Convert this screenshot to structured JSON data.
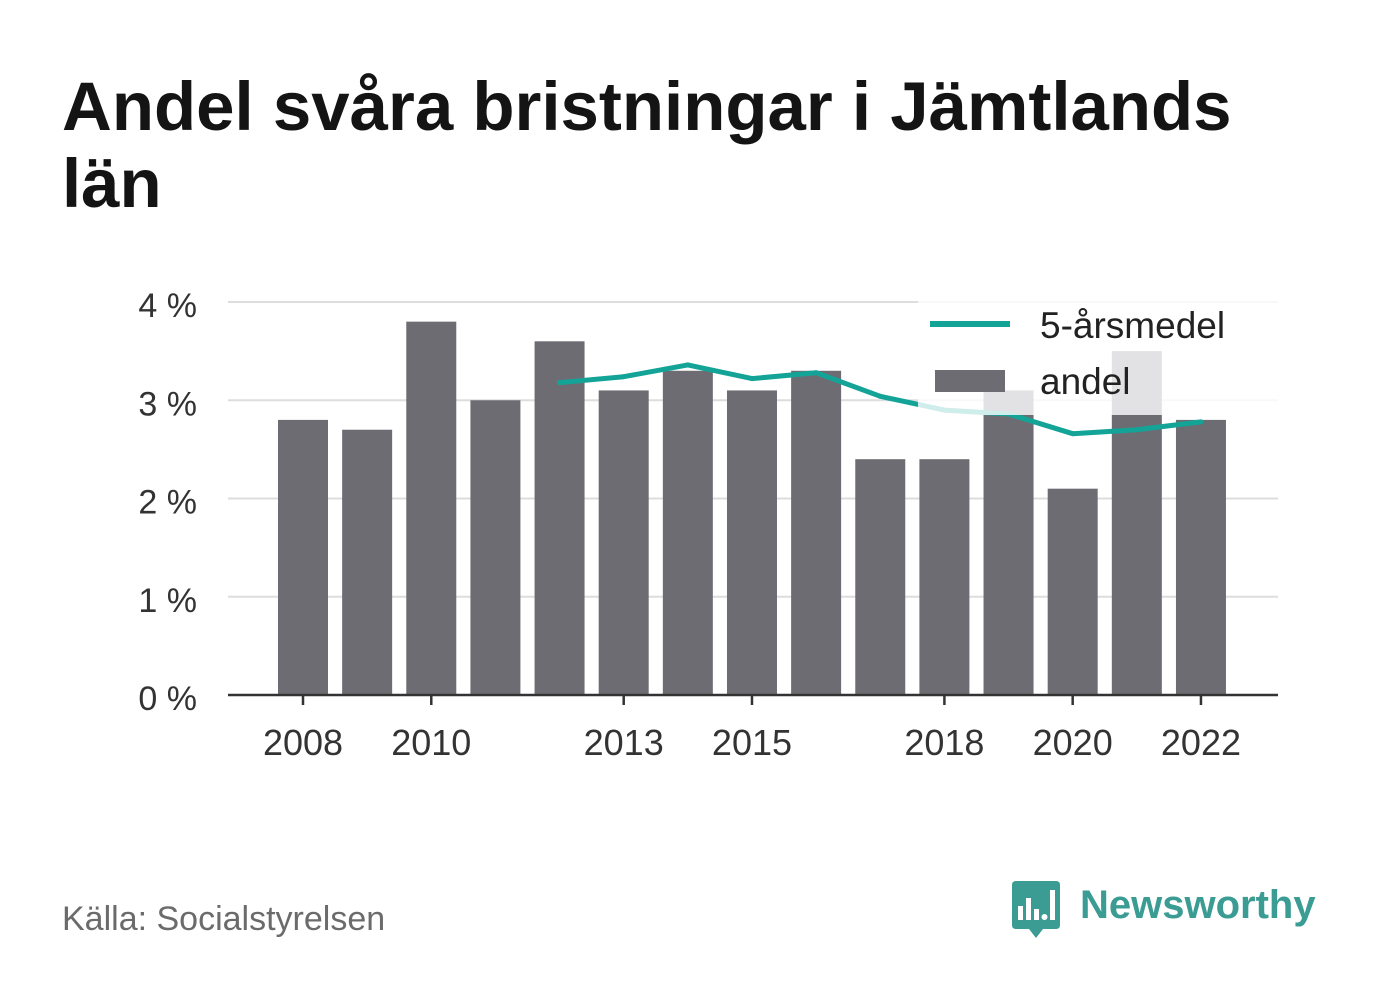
{
  "source": "Källa: Socialstyrelsen",
  "logo": {
    "text": "Newsworthy",
    "icon": "newsworthy-logo-icon"
  },
  "colors": {
    "bar": "#6e6c73",
    "line": "#13a397",
    "grid": "#dddddd",
    "axis": "#333333",
    "logo": "#3a9c93"
  },
  "chart_data": {
    "type": "bar",
    "title": "Andel svåra bristningar i Jämtlands län",
    "x": [
      2008,
      2009,
      2010,
      2011,
      2012,
      2013,
      2014,
      2015,
      2016,
      2017,
      2018,
      2019,
      2020,
      2021,
      2022
    ],
    "series": [
      {
        "name": "andel",
        "type": "bar",
        "values": [
          2.8,
          2.7,
          3.8,
          3.0,
          3.6,
          3.1,
          3.3,
          3.1,
          3.3,
          2.4,
          2.4,
          3.1,
          2.1,
          3.5,
          2.8
        ]
      },
      {
        "name": "5-årsmedel",
        "type": "line",
        "values": [
          null,
          null,
          null,
          null,
          3.18,
          3.24,
          3.36,
          3.22,
          3.28,
          3.04,
          2.9,
          2.86,
          2.66,
          2.7,
          2.78
        ]
      }
    ],
    "xticks": [
      2008,
      2010,
      2013,
      2015,
      2018,
      2020,
      2022
    ],
    "yticks": [
      0,
      1,
      2,
      3,
      4
    ],
    "ytick_labels": [
      "0 %",
      "1 %",
      "2 %",
      "3 %",
      "4 %"
    ],
    "ylim": [
      0,
      4
    ],
    "grid": true,
    "legend": "top-right"
  }
}
